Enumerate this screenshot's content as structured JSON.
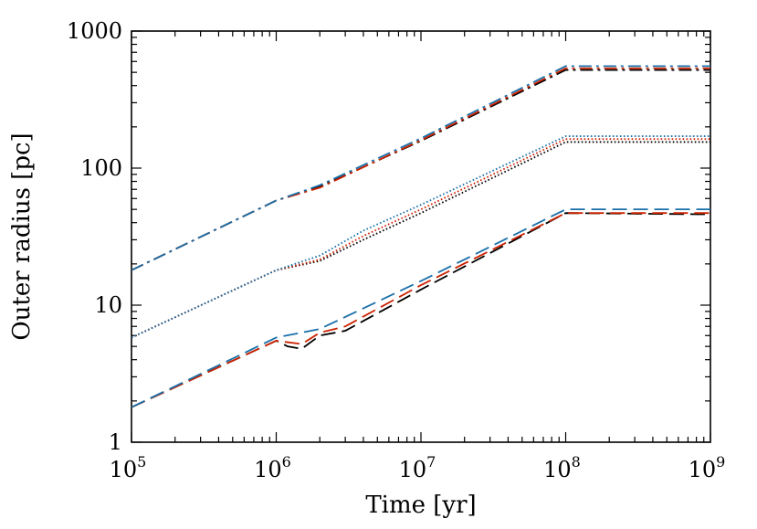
{
  "chart_data": {
    "type": "line",
    "title": "",
    "xlabel": "Time [yr]",
    "ylabel": "Outer radius [pc]",
    "xscale": "log",
    "yscale": "log",
    "xlim": [
      100000,
      1000000000
    ],
    "ylim": [
      1,
      1000
    ],
    "grid": false,
    "legend": "none",
    "x_ticks": [
      {
        "base": "10",
        "exp": "5",
        "value": 100000
      },
      {
        "base": "10",
        "exp": "6",
        "value": 1000000
      },
      {
        "base": "10",
        "exp": "7",
        "value": 10000000
      },
      {
        "base": "10",
        "exp": "8",
        "value": 100000000
      },
      {
        "base": "10",
        "exp": "9",
        "value": 1000000000
      }
    ],
    "y_ticks": [
      {
        "label": "1",
        "value": 1
      },
      {
        "label": "10",
        "value": 10
      },
      {
        "label": "100",
        "value": 100
      },
      {
        "label": "1000",
        "value": 1000
      }
    ],
    "series": [
      {
        "style": "dashdot",
        "color": "#000000",
        "x": [
          100000,
          1000000,
          2000000,
          10000000,
          100000000,
          1000000000
        ],
        "y": [
          18,
          58,
          73,
          158,
          520,
          520
        ]
      },
      {
        "style": "dashdot",
        "color": "#cc2200",
        "x": [
          100000,
          1000000,
          2000000,
          10000000,
          100000000,
          1000000000
        ],
        "y": [
          18,
          58,
          72,
          160,
          535,
          535
        ]
      },
      {
        "style": "dashdot",
        "color": "#1a6fa8",
        "x": [
          100000,
          1000000,
          2000000,
          10000000,
          100000000,
          1000000000
        ],
        "y": [
          18,
          58,
          75,
          165,
          555,
          555
        ]
      },
      {
        "style": "dotted",
        "color": "#000000",
        "x": [
          100000,
          1000000,
          2000000,
          4000000,
          10000000,
          100000000,
          1000000000
        ],
        "y": [
          5.8,
          18,
          21,
          30,
          47,
          155,
          155
        ]
      },
      {
        "style": "dotted",
        "color": "#cc2200",
        "x": [
          100000,
          1000000,
          2000000,
          4000000,
          10000000,
          100000000,
          1000000000
        ],
        "y": [
          5.8,
          18,
          21.5,
          32,
          50,
          163,
          163
        ]
      },
      {
        "style": "dotted",
        "color": "#1a6fa8",
        "x": [
          100000,
          1000000,
          2000000,
          4000000,
          10000000,
          100000000,
          1000000000
        ],
        "y": [
          5.8,
          18,
          23,
          35,
          54,
          171,
          171
        ]
      },
      {
        "style": "dashed",
        "color": "#000000",
        "x": [
          100000,
          1000000,
          1200000,
          1500000,
          2000000,
          3000000,
          10000000,
          100000000,
          1000000000
        ],
        "y": [
          1.8,
          5.5,
          5.0,
          4.8,
          6.0,
          6.5,
          13,
          47,
          46
        ]
      },
      {
        "style": "dashed",
        "color": "#cc2200",
        "x": [
          100000,
          1000000,
          1500000,
          2000000,
          3000000,
          10000000,
          100000000,
          1000000000
        ],
        "y": [
          1.8,
          5.5,
          5.2,
          6.3,
          7.0,
          14,
          47,
          47
        ]
      },
      {
        "style": "dashed",
        "color": "#1a6fa8",
        "x": [
          100000,
          1000000,
          2000000,
          10000000,
          100000000,
          1000000000
        ],
        "y": [
          1.8,
          5.8,
          6.7,
          15,
          50,
          50
        ]
      }
    ]
  }
}
